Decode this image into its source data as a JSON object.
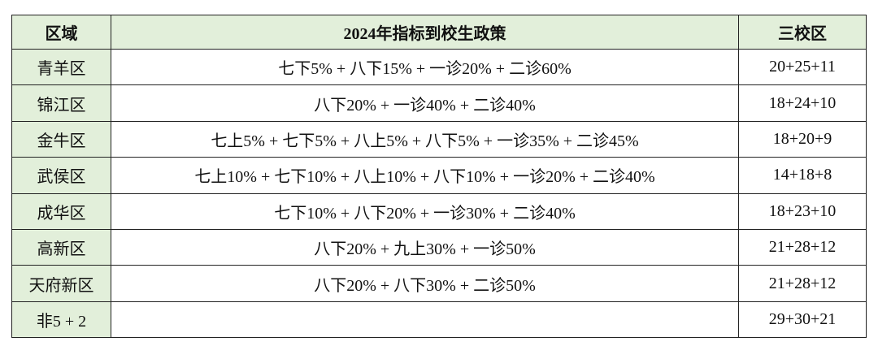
{
  "table": {
    "header": [
      "区域",
      "2024年指标到校生政策",
      "三校区"
    ],
    "rows": [
      {
        "region": "青羊区",
        "policy": "七下5% + 八下15% + 一诊20% + 二诊60%",
        "campuses": "20+25+11"
      },
      {
        "region": "锦江区",
        "policy": "八下20% + 一诊40% + 二诊40%",
        "campuses": "18+24+10"
      },
      {
        "region": "金牛区",
        "policy": "七上5% + 七下5% + 八上5% + 八下5% + 一诊35% + 二诊45%",
        "campuses": "18+20+9"
      },
      {
        "region": "武侯区",
        "policy": "七上10% + 七下10% + 八上10% + 八下10% + 一诊20% + 二诊40%",
        "campuses": "14+18+8"
      },
      {
        "region": "成华区",
        "policy": "七下10% + 八下20% + 一诊30% + 二诊40%",
        "campuses": "18+23+10"
      },
      {
        "region": "高新区",
        "policy": "八下20% + 九上30% + 一诊50%",
        "campuses": "21+28+12"
      },
      {
        "region": "天府新区",
        "policy": "八下20% + 八下30% + 二诊50%",
        "campuses": "21+28+12"
      },
      {
        "region": "非5 + 2",
        "campuses": "29+30+21"
      }
    ]
  }
}
